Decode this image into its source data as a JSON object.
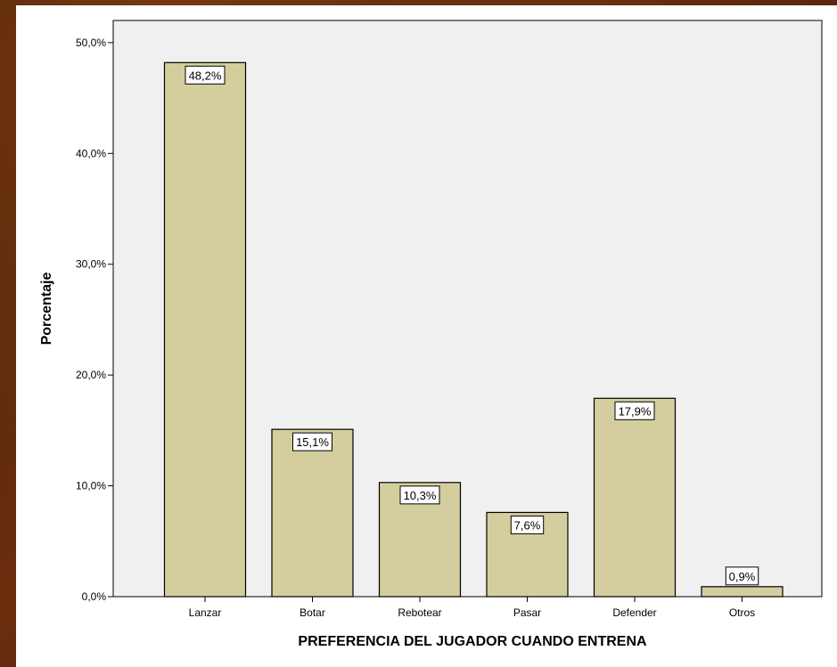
{
  "chart_data": {
    "type": "bar",
    "categories": [
      "Lanzar",
      "Botar",
      "Rebotear",
      "Pasar",
      "Defender",
      "Otros"
    ],
    "values": [
      48.2,
      15.1,
      10.3,
      7.6,
      17.9,
      0.9
    ],
    "data_labels": [
      "48,2%",
      "15,1%",
      "10,3%",
      "7,6%",
      "17,9%",
      "0,9%"
    ],
    "xlabel": "PREFERENCIA DEL JUGADOR CUANDO ENTRENA",
    "ylabel": "Porcentaje",
    "ylim": [
      0,
      52
    ],
    "yticks": [
      0,
      10,
      20,
      30,
      40,
      50
    ],
    "ytick_labels": [
      "0,0%",
      "10,0%",
      "20,0%",
      "30,0%",
      "40,0%",
      "50,0%"
    ],
    "grid": false,
    "colors": {
      "bar_fill": "#d4ce9e",
      "bar_stroke": "#000000",
      "plot_bg": "#f0f0f0",
      "label_box": "#ffffff"
    }
  }
}
